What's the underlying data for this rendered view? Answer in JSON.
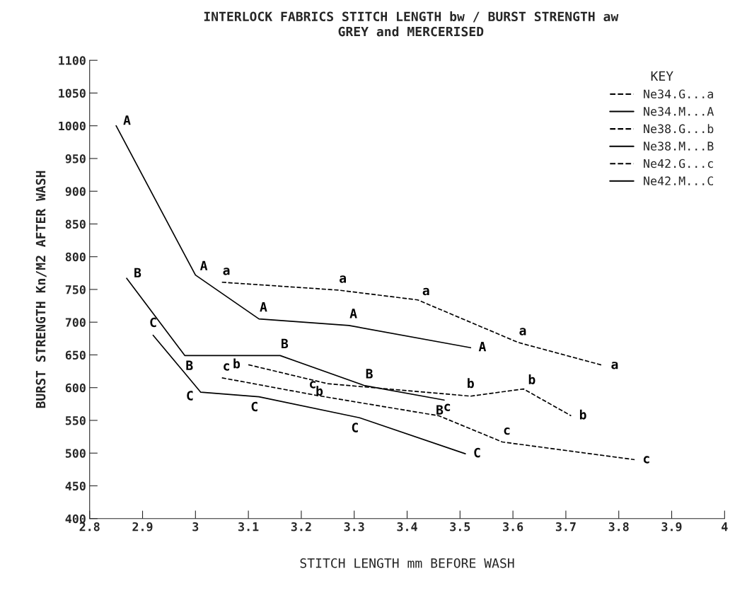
{
  "chart_data": {
    "type": "line",
    "title": "INTERLOCK FABRICS STITCH LENGTH bw / BURST STRENGTH aw",
    "subtitle": "GREY and MERCERISED",
    "xlabel": "STITCH LENGTH mm BEFORE WASH",
    "ylabel": "BURST STRENGTH Kn/M2 AFTER WASH",
    "legend_title": "KEY",
    "legend": "top right",
    "grid": false,
    "marker": "none",
    "xlim": [
      2.8,
      4
    ],
    "xticks": [
      2.8,
      2.9,
      3,
      3.1,
      3.2,
      3.3,
      3.4,
      3.5,
      3.6,
      3.7,
      3.8,
      3.9,
      4
    ],
    "ylim": [
      400,
      1100
    ],
    "yticks": [
      400,
      450,
      500,
      550,
      600,
      650,
      700,
      750,
      800,
      850,
      900,
      950,
      1000,
      1050,
      1100
    ],
    "series": [
      {
        "name": "Ne34.G...a",
        "color": "#000000",
        "line_style": "dashed",
        "x": [
          3.05,
          3.27,
          3.42,
          3.61,
          3.77
        ],
        "values": [
          761,
          749,
          734,
          669,
          634
        ]
      },
      {
        "name": "Ne34.M...A",
        "color": "#000000",
        "line_style": "solid",
        "x": [
          2.85,
          3.0,
          3.12,
          3.29,
          3.52
        ],
        "values": [
          1000,
          772,
          705,
          695,
          661
        ]
      },
      {
        "name": "Ne38.G...b",
        "color": "#000000",
        "line_style": "dashed",
        "x": [
          3.1,
          3.25,
          3.52,
          3.62,
          3.71
        ],
        "values": [
          635,
          606,
          587,
          598,
          557
        ]
      },
      {
        "name": "Ne38.M...B",
        "color": "#000000",
        "line_style": "solid",
        "x": [
          2.87,
          2.98,
          3.16,
          3.32,
          3.47
        ],
        "values": [
          767,
          649,
          649,
          603,
          581
        ]
      },
      {
        "name": "Ne42.G...c",
        "color": "#000000",
        "line_style": "dashed",
        "x": [
          3.05,
          3.23,
          3.46,
          3.58,
          3.83
        ],
        "values": [
          615,
          588,
          557,
          517,
          490
        ]
      },
      {
        "name": "Ne42.M...C",
        "color": "#000000",
        "line_style": "solid",
        "x": [
          2.92,
          3.01,
          3.12,
          3.31,
          3.51
        ],
        "values": [
          680,
          593,
          586,
          554,
          499
        ]
      }
    ],
    "annotations": [
      {
        "text": "a",
        "x": 3.05,
        "y": 761
      },
      {
        "text": "a",
        "x": 3.27,
        "y": 749
      },
      {
        "text": "a",
        "x": 3.42,
        "y": 734
      },
      {
        "text": "a",
        "x": 3.61,
        "y": 669
      },
      {
        "text": "a",
        "x": 3.77,
        "y": 634
      },
      {
        "text": "A",
        "x": 2.85,
        "y": 1000
      },
      {
        "text": "A",
        "x": 3.0,
        "y": 772
      },
      {
        "text": "A",
        "x": 3.12,
        "y": 705
      },
      {
        "text": "A",
        "x": 3.29,
        "y": 695
      },
      {
        "text": "A",
        "x": 3.52,
        "y": 661
      },
      {
        "text": "b",
        "x": 3.1,
        "y": 635
      },
      {
        "text": "b",
        "x": 3.25,
        "y": 606
      },
      {
        "text": "b",
        "x": 3.52,
        "y": 587
      },
      {
        "text": "b",
        "x": 3.62,
        "y": 598
      },
      {
        "text": "b",
        "x": 3.71,
        "y": 557
      },
      {
        "text": "B",
        "x": 2.87,
        "y": 767
      },
      {
        "text": "B",
        "x": 2.98,
        "y": 649
      },
      {
        "text": "B",
        "x": 3.16,
        "y": 649
      },
      {
        "text": "B",
        "x": 3.32,
        "y": 603
      },
      {
        "text": "B",
        "x": 3.47,
        "y": 581
      },
      {
        "text": "c",
        "x": 3.05,
        "y": 615
      },
      {
        "text": "c",
        "x": 3.23,
        "y": 588
      },
      {
        "text": "c",
        "x": 3.46,
        "y": 557
      },
      {
        "text": "c",
        "x": 3.58,
        "y": 517
      },
      {
        "text": "c",
        "x": 3.83,
        "y": 490
      },
      {
        "text": "C",
        "x": 2.92,
        "y": 680
      },
      {
        "text": "C",
        "x": 3.01,
        "y": 593
      },
      {
        "text": "C",
        "x": 3.12,
        "y": 586
      },
      {
        "text": "C",
        "x": 3.31,
        "y": 554
      },
      {
        "text": "C",
        "x": 3.51,
        "y": 499
      }
    ]
  }
}
